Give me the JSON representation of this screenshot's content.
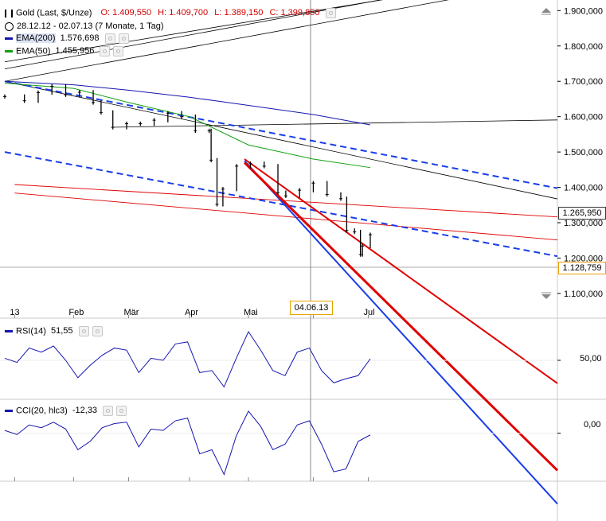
{
  "header": {
    "title": "Gold (Last, $/Unze)",
    "ohlc": [
      {
        "label": "O:",
        "value": "1.409,550"
      },
      {
        "label": "H:",
        "value": "1.409,700"
      },
      {
        "label": "L:",
        "value": "1.389,150"
      },
      {
        "label": "C:",
        "value": "1.399,850"
      }
    ],
    "range": "28.12.12 - 02.07.13 (7 Monate, 1 Tag)"
  },
  "indicators": {
    "ema200": {
      "label": "EMA(200)",
      "value": "1.576,698",
      "color": "#1515b0"
    },
    "ema50": {
      "label": "EMA(50)",
      "value": "1.455,956",
      "color": "#10a010"
    },
    "rsi": {
      "label": "RSI(14)",
      "value": "51,55",
      "level_label": "50,00"
    },
    "cci": {
      "label": "CCI(20, hlc3)",
      "value": "-12,33",
      "level_label": "0,00"
    }
  },
  "crosshair": {
    "date_label": "04.06.13"
  },
  "price_labels": {
    "current": "1.265,950",
    "cursor": "1.128,759"
  },
  "chart_data": {
    "type": "candlestick",
    "title": "Gold (Last, $/Unze)",
    "y_ticks": [
      "1.900,000",
      "1.800,000",
      "1.700,000",
      "1.600,000",
      "1.500,000",
      "1.400,000",
      "1.300,000",
      "1.200,000",
      "1.100,000"
    ],
    "y_tick_values": [
      1900,
      1800,
      1700,
      1600,
      1500,
      1400,
      1300,
      1200,
      1100
    ],
    "ylim": [
      1030,
      1930
    ],
    "x_ticks": [
      "13",
      "Feb",
      "Mär",
      "Apr",
      "Mai",
      "Jul"
    ],
    "x_range": [
      "2012-12-28",
      "2013-07-02"
    ],
    "month_starts": [
      "2013-01-02",
      "2013-02-01",
      "2013-03-01",
      "2013-04-01",
      "2013-05-01",
      "2013-06-03",
      "2013-07-01"
    ],
    "series": [
      {
        "name": "Gold close",
        "values": [
          {
            "x": "2012-12-28",
            "y": 1657
          },
          {
            "x": "2013-01-07",
            "y": 1645
          },
          {
            "x": "2013-01-14",
            "y": 1668
          },
          {
            "x": "2013-01-21",
            "y": 1686
          },
          {
            "x": "2013-01-28",
            "y": 1662
          },
          {
            "x": "2013-02-04",
            "y": 1669
          },
          {
            "x": "2013-02-11",
            "y": 1640
          },
          {
            "x": "2013-02-15",
            "y": 1612
          },
          {
            "x": "2013-02-21",
            "y": 1570
          },
          {
            "x": "2013-02-28",
            "y": 1580
          },
          {
            "x": "2013-03-07",
            "y": 1580
          },
          {
            "x": "2013-03-14",
            "y": 1590
          },
          {
            "x": "2013-03-21",
            "y": 1610
          },
          {
            "x": "2013-03-28",
            "y": 1600
          },
          {
            "x": "2013-04-04",
            "y": 1560
          },
          {
            "x": "2013-04-11",
            "y": 1560
          },
          {
            "x": "2013-04-12",
            "y": 1477
          },
          {
            "x": "2013-04-15",
            "y": 1352
          },
          {
            "x": "2013-04-18",
            "y": 1395
          },
          {
            "x": "2013-04-25",
            "y": 1460
          },
          {
            "x": "2013-05-02",
            "y": 1467
          },
          {
            "x": "2013-05-09",
            "y": 1460
          },
          {
            "x": "2013-05-16",
            "y": 1385
          },
          {
            "x": "2013-05-20",
            "y": 1376
          },
          {
            "x": "2013-05-27",
            "y": 1392
          },
          {
            "x": "2013-06-03",
            "y": 1412
          },
          {
            "x": "2013-06-10",
            "y": 1380
          },
          {
            "x": "2013-06-17",
            "y": 1368
          },
          {
            "x": "2013-06-20",
            "y": 1278
          },
          {
            "x": "2013-06-24",
            "y": 1274
          },
          {
            "x": "2013-06-27",
            "y": 1210
          },
          {
            "x": "2013-06-28",
            "y": 1234
          },
          {
            "x": "2013-07-02",
            "y": 1266
          }
        ]
      },
      {
        "name": "EMA(200)",
        "values": [
          {
            "x": "2012-12-28",
            "y": 1700
          },
          {
            "x": "2013-02-01",
            "y": 1690
          },
          {
            "x": "2013-03-01",
            "y": 1675
          },
          {
            "x": "2013-04-01",
            "y": 1655
          },
          {
            "x": "2013-05-01",
            "y": 1632
          },
          {
            "x": "2013-06-03",
            "y": 1606
          },
          {
            "x": "2013-07-02",
            "y": 1576.698
          }
        ]
      },
      {
        "name": "EMA(50)",
        "values": [
          {
            "x": "2012-12-28",
            "y": 1695
          },
          {
            "x": "2013-02-01",
            "y": 1680
          },
          {
            "x": "2013-03-01",
            "y": 1640
          },
          {
            "x": "2013-04-01",
            "y": 1600
          },
          {
            "x": "2013-05-01",
            "y": 1520
          },
          {
            "x": "2013-06-03",
            "y": 1480
          },
          {
            "x": "2013-07-02",
            "y": 1455.956
          }
        ]
      }
    ],
    "rsi": [
      52,
      48,
      62,
      58,
      64,
      50,
      33,
      45,
      55,
      62,
      60,
      38,
      52,
      50,
      66,
      68,
      38,
      40,
      24,
      52,
      78,
      60,
      40,
      35,
      58,
      62,
      40,
      28,
      32,
      35,
      51.55
    ],
    "cci": [
      20,
      -10,
      60,
      40,
      80,
      30,
      -120,
      -60,
      40,
      70,
      80,
      -100,
      30,
      20,
      90,
      110,
      -150,
      -120,
      -300,
      -20,
      160,
      50,
      -120,
      -80,
      60,
      90,
      -80,
      -280,
      -260,
      -60,
      -12.33
    ]
  }
}
